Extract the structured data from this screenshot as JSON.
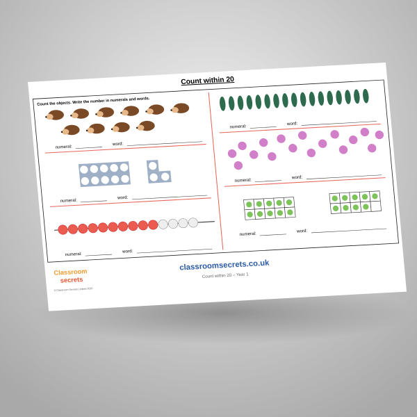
{
  "header": {
    "title": "Count within 20"
  },
  "instructions": "Count the objects. Write the number in numerals and words.",
  "panels": [
    {
      "numeral_label": "numeral:",
      "word_label": "word:"
    },
    {
      "numeral_label": "numeral:",
      "word_label": "word:"
    },
    {
      "numeral_label": "numeral:",
      "word_label": "word:"
    },
    {
      "numeral_label": "numeral:",
      "word_label": "word:"
    },
    {
      "numeral_label": "numeral:",
      "word_label": "word:"
    },
    {
      "numeral_label": "numeral:",
      "word_label": "word:"
    }
  ],
  "footer": {
    "website": "classroomsecrets.co.uk",
    "caption": "Count within 20 – Year 1",
    "logo": [
      "Classroom",
      "secrets"
    ],
    "copyright": "© Classroom Secrets Limited 2020"
  }
}
